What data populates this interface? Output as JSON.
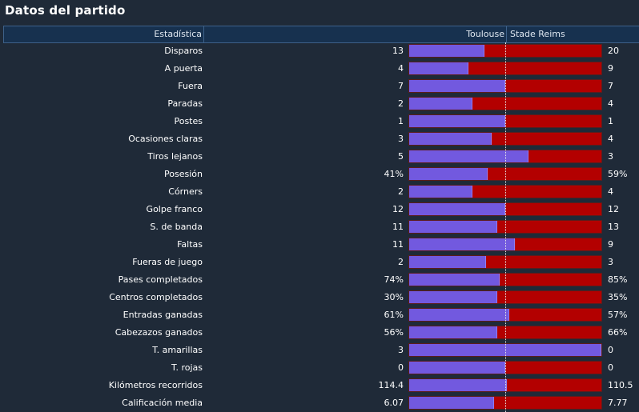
{
  "title": "Datos del partido",
  "header": {
    "stat": "Estadística",
    "home": "Toulouse",
    "away": "Stade Reims"
  },
  "colors": {
    "home_bar": "#7259df",
    "away_bar": "#b30000",
    "background": "#1f2a38",
    "header_bg": "#17314f"
  },
  "rows": [
    {
      "label": "Disparos",
      "home": "13",
      "away": "20",
      "home_share": 0.39
    },
    {
      "label": "A puerta",
      "home": "4",
      "away": "9",
      "home_share": 0.31
    },
    {
      "label": "Fuera",
      "home": "7",
      "away": "7",
      "home_share": 0.5
    },
    {
      "label": "Paradas",
      "home": "2",
      "away": "4",
      "home_share": 0.33
    },
    {
      "label": "Postes",
      "home": "1",
      "away": "1",
      "home_share": 0.5
    },
    {
      "label": "Ocasiones claras",
      "home": "3",
      "away": "4",
      "home_share": 0.43
    },
    {
      "label": "Tiros lejanos",
      "home": "5",
      "away": "3",
      "home_share": 0.62
    },
    {
      "label": "Posesión",
      "home": "41%",
      "away": "59%",
      "home_share": 0.41
    },
    {
      "label": "Córners",
      "home": "2",
      "away": "4",
      "home_share": 0.33
    },
    {
      "label": "Golpe franco",
      "home": "12",
      "away": "12",
      "home_share": 0.5
    },
    {
      "label": "S. de banda",
      "home": "11",
      "away": "13",
      "home_share": 0.46
    },
    {
      "label": "Faltas",
      "home": "11",
      "away": "9",
      "home_share": 0.55
    },
    {
      "label": "Fueras de juego",
      "home": "2",
      "away": "3",
      "home_share": 0.4
    },
    {
      "label": "Pases completados",
      "home": "74%",
      "away": "85%",
      "home_share": 0.47
    },
    {
      "label": "Centros completados",
      "home": "30%",
      "away": "35%",
      "home_share": 0.46
    },
    {
      "label": "Entradas ganadas",
      "home": "61%",
      "away": "57%",
      "home_share": 0.52
    },
    {
      "label": "Cabezazos ganados",
      "home": "56%",
      "away": "66%",
      "home_share": 0.46
    },
    {
      "label": "T. amarillas",
      "home": "3",
      "away": "0",
      "home_share": 1.0
    },
    {
      "label": "T. rojas",
      "home": "0",
      "away": "0",
      "home_share": 0.5
    },
    {
      "label": "Kilómetros recorridos",
      "home": "114.4",
      "away": "110.5",
      "home_share": 0.51
    },
    {
      "label": "Calificación media",
      "home": "6.07",
      "away": "7.77",
      "home_share": 0.44
    }
  ]
}
